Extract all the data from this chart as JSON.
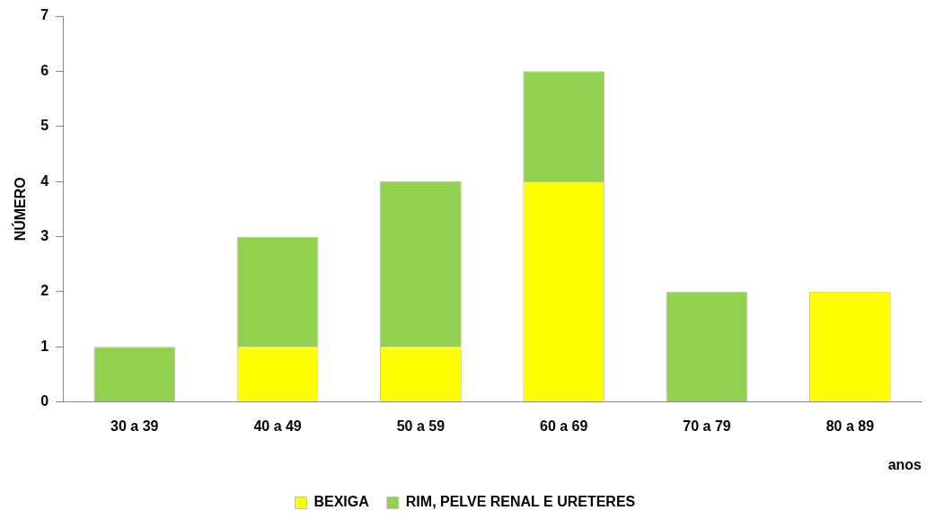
{
  "chart_data": {
    "type": "bar",
    "stacked": true,
    "ylabel": "NÚMERO",
    "xlabel": "anos",
    "categories": [
      "30 a 39",
      "40 a 49",
      "50 a 59",
      "60 a 69",
      "70 a 79",
      "80 a 89"
    ],
    "series": [
      {
        "name": "BEXIGA",
        "color": "#ffff00",
        "values": [
          0,
          1,
          1,
          4,
          0,
          2
        ]
      },
      {
        "name": "RIM, PELVE RENAL E URETERES",
        "color": "#92d050",
        "values": [
          1,
          2,
          3,
          2,
          2,
          0
        ]
      }
    ],
    "ylim": [
      0,
      7
    ],
    "yticks": [
      0,
      1,
      2,
      3,
      4,
      5,
      6,
      7
    ],
    "grid": false,
    "legend": "bottom"
  }
}
